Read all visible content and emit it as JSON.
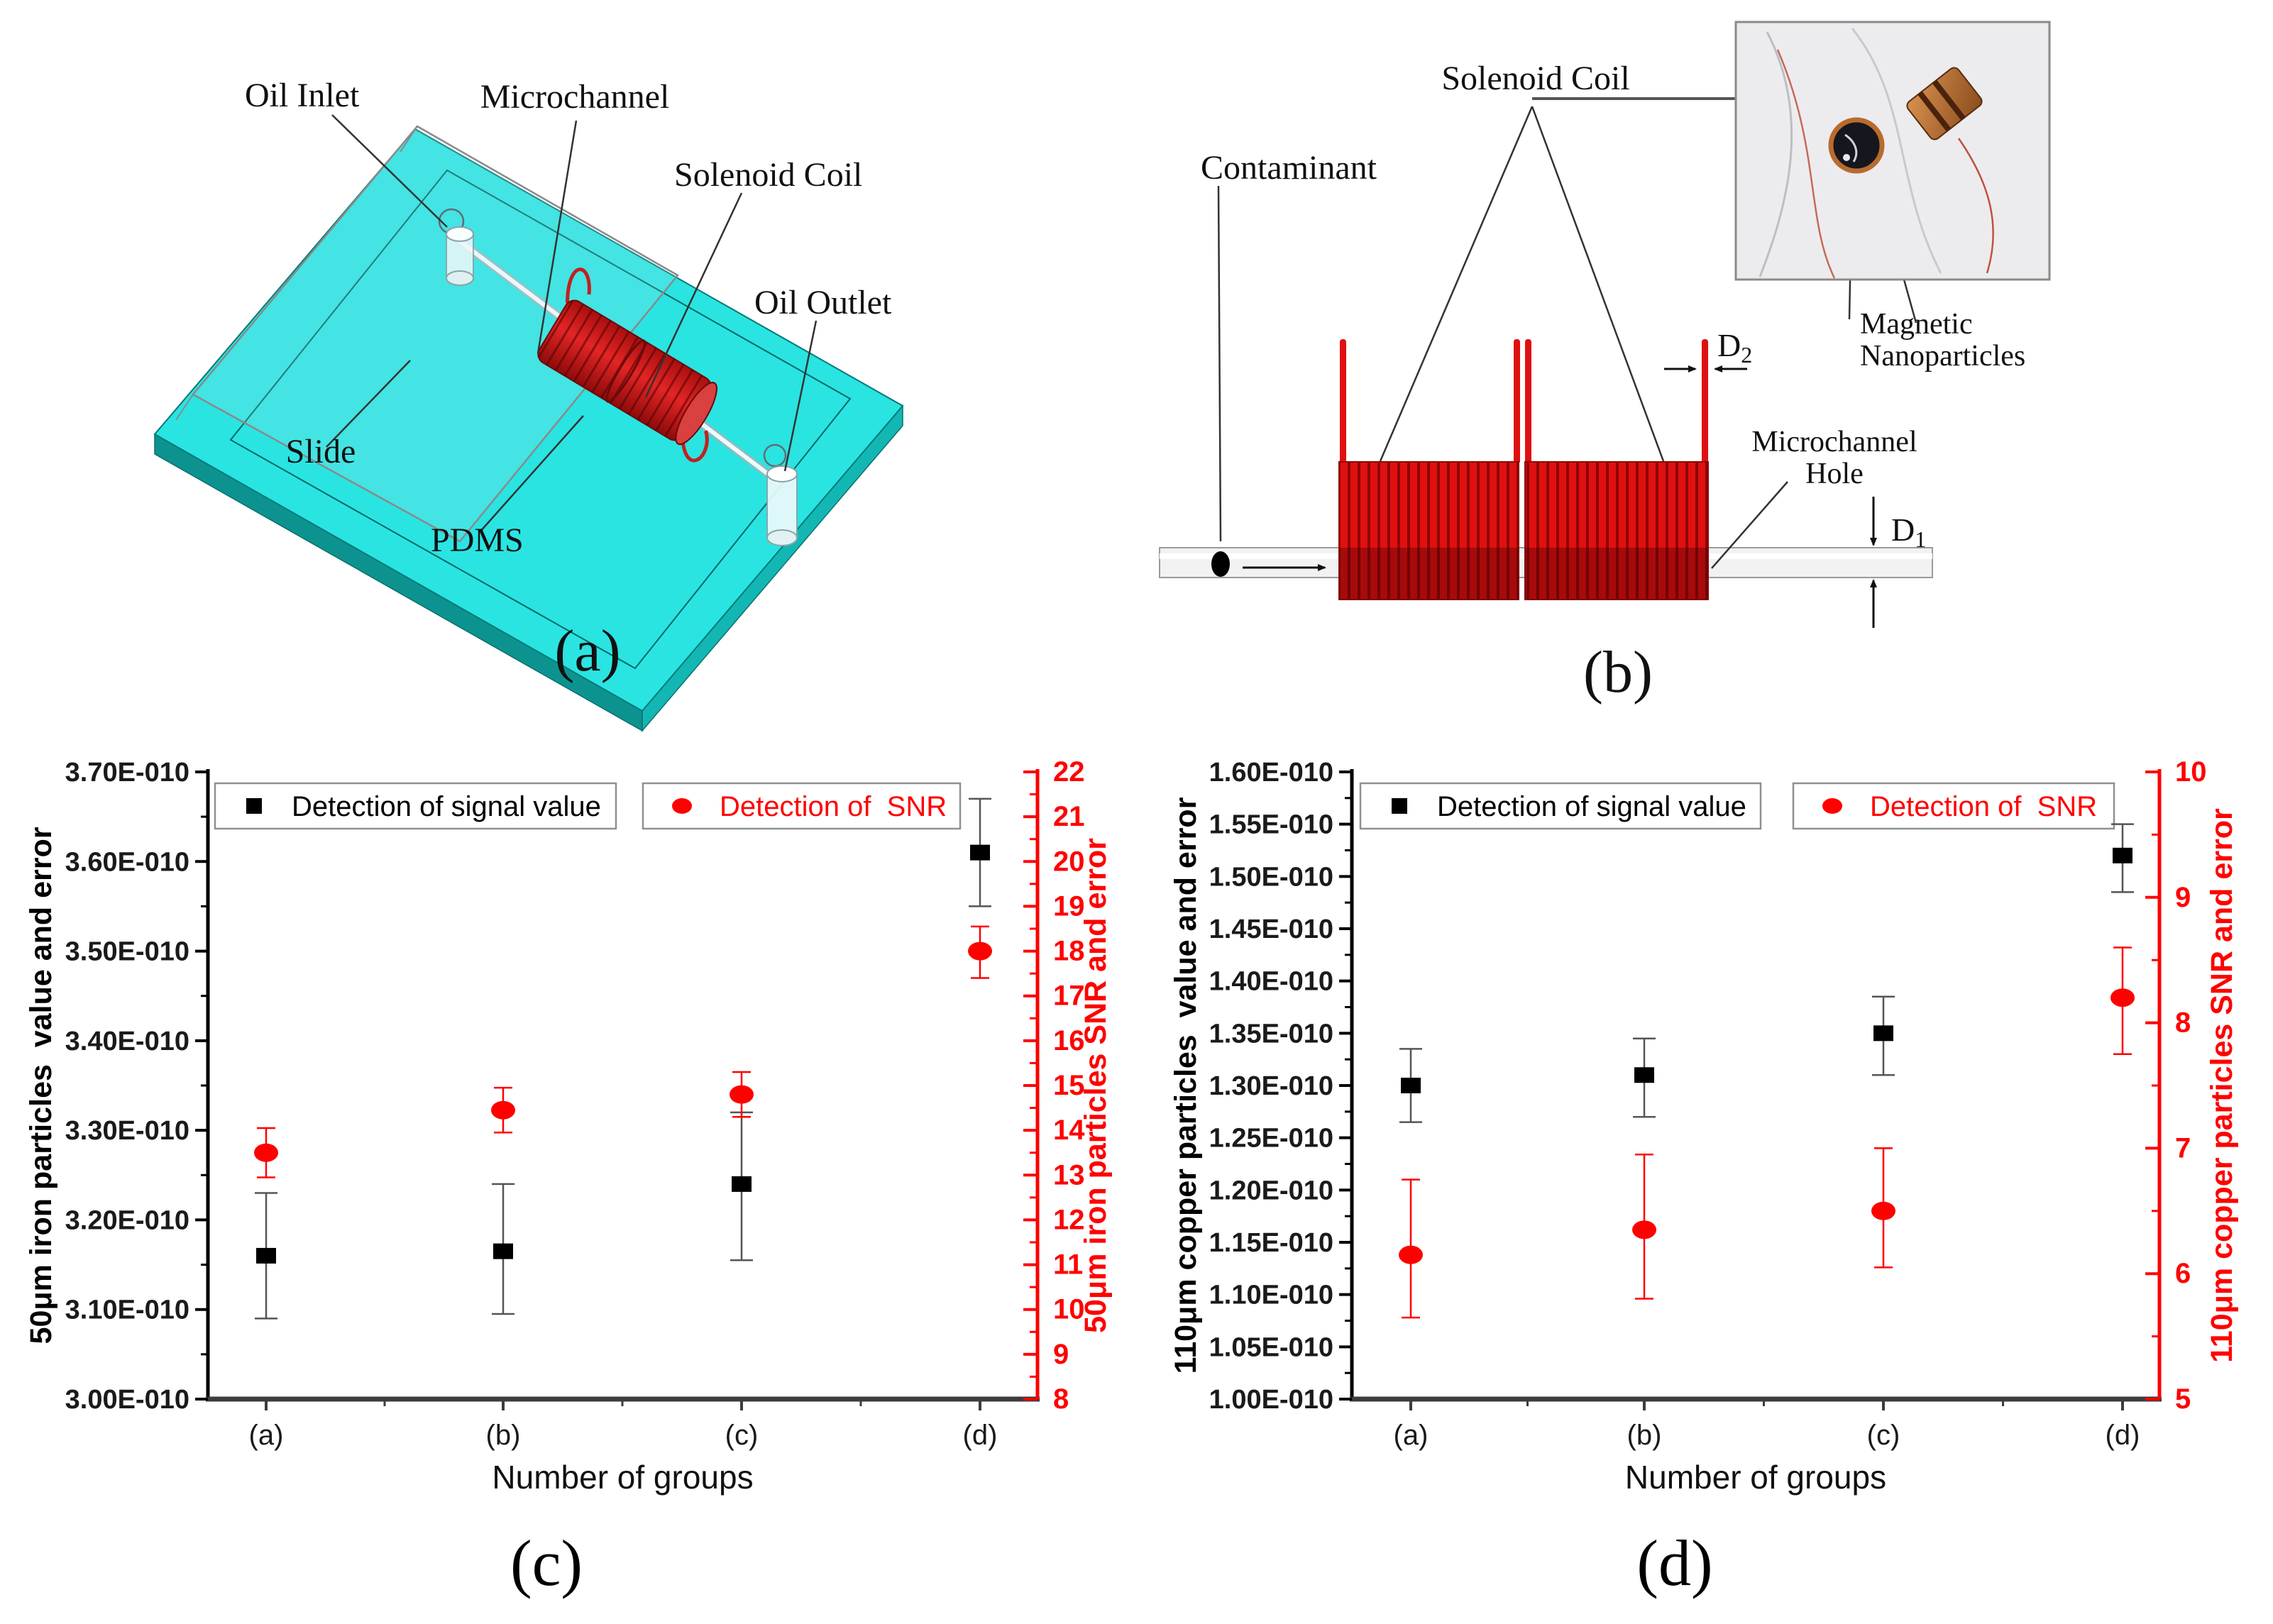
{
  "panel_a": {
    "caption": "(a)",
    "labels": {
      "oil_inlet": "Oil Inlet",
      "microchannel": "Microchannel",
      "solenoid_coil": "Solenoid Coil",
      "oil_outlet": "Oil Outlet",
      "slide": "Slide",
      "pdms": "PDMS"
    },
    "colors": {
      "pdms_top": "#2ae4e2",
      "pdms_side_left": "#0c9390",
      "pdms_side_right": "#12b7b4",
      "coil_red": "#d31515"
    }
  },
  "panel_b": {
    "caption": "(b)",
    "labels": {
      "solenoid_coil": "Solenoid Coil",
      "contaminant": "Contaminant",
      "magnetic_line1": "Magnetic",
      "magnetic_line2": "Nanoparticles",
      "microchannel_line1": "Microchannel",
      "microchannel_line2": "Hole",
      "d1": "D",
      "d1_sub": "1",
      "d2": "D",
      "d2_sub": "2"
    },
    "colors": {
      "coil_red": "#e01010",
      "wire_dark": "#8f0505"
    }
  },
  "chart_data": [
    {
      "type": "scatter",
      "caption": "(c)",
      "xlabel": "Number of groups",
      "categories": [
        "(a)",
        "(b)",
        "(c)",
        "(d)"
      ],
      "left_axis": {
        "label": "50μm iron particles  value and error",
        "min": 3.0,
        "max": 3.7,
        "tick_step": 0.1,
        "tick_decimals": 2,
        "tick_suffix": "E-010",
        "color": "#000000"
      },
      "right_axis": {
        "label": "50μm iron particles SNR and error",
        "min": 8,
        "max": 22,
        "tick_step": 1,
        "tick_decimals": 0,
        "tick_suffix": "",
        "color": "#ff0000"
      },
      "grid": false,
      "legend_position": "top-inside",
      "series": [
        {
          "name": "Detection of signal value",
          "axis": "left",
          "marker": "square",
          "color": "#000000",
          "values": [
            3.16,
            3.165,
            3.24,
            3.61
          ],
          "err_low": [
            3.09,
            3.095,
            3.155,
            3.55
          ],
          "err_high": [
            3.23,
            3.24,
            3.32,
            3.67
          ]
        },
        {
          "name": "Detection of  SNR",
          "axis": "right",
          "marker": "circle",
          "color": "#ff0000",
          "values": [
            13.5,
            14.45,
            14.8,
            18.0
          ],
          "err_low": [
            12.95,
            13.95,
            14.3,
            17.4
          ],
          "err_high": [
            14.05,
            14.95,
            15.3,
            18.55
          ]
        }
      ]
    },
    {
      "type": "scatter",
      "caption": "(d)",
      "xlabel": "Number of groups",
      "categories": [
        "(a)",
        "(b)",
        "(c)",
        "(d)"
      ],
      "left_axis": {
        "label": "110μm copper particles  value and error",
        "min": 1.0,
        "max": 1.6,
        "tick_step": 0.05,
        "tick_decimals": 2,
        "tick_suffix": "E-010",
        "color": "#000000"
      },
      "right_axis": {
        "label": "110μm copper particles SNR and error",
        "min": 5,
        "max": 10,
        "tick_step": 1,
        "tick_decimals": 0,
        "tick_suffix": "",
        "color": "#ff0000"
      },
      "grid": false,
      "legend_position": "top-inside",
      "series": [
        {
          "name": "Detection of signal value",
          "axis": "left",
          "marker": "square",
          "color": "#000000",
          "values": [
            1.3,
            1.31,
            1.35,
            1.52
          ],
          "err_low": [
            1.265,
            1.27,
            1.31,
            1.485
          ],
          "err_high": [
            1.335,
            1.345,
            1.385,
            1.55
          ]
        },
        {
          "name": "Detection of  SNR",
          "axis": "right",
          "marker": "circle",
          "color": "#ff0000",
          "values": [
            6.15,
            6.35,
            6.5,
            8.2
          ],
          "err_low": [
            5.65,
            5.8,
            6.05,
            7.75
          ],
          "err_high": [
            6.75,
            6.95,
            7.0,
            8.6
          ]
        }
      ]
    }
  ]
}
